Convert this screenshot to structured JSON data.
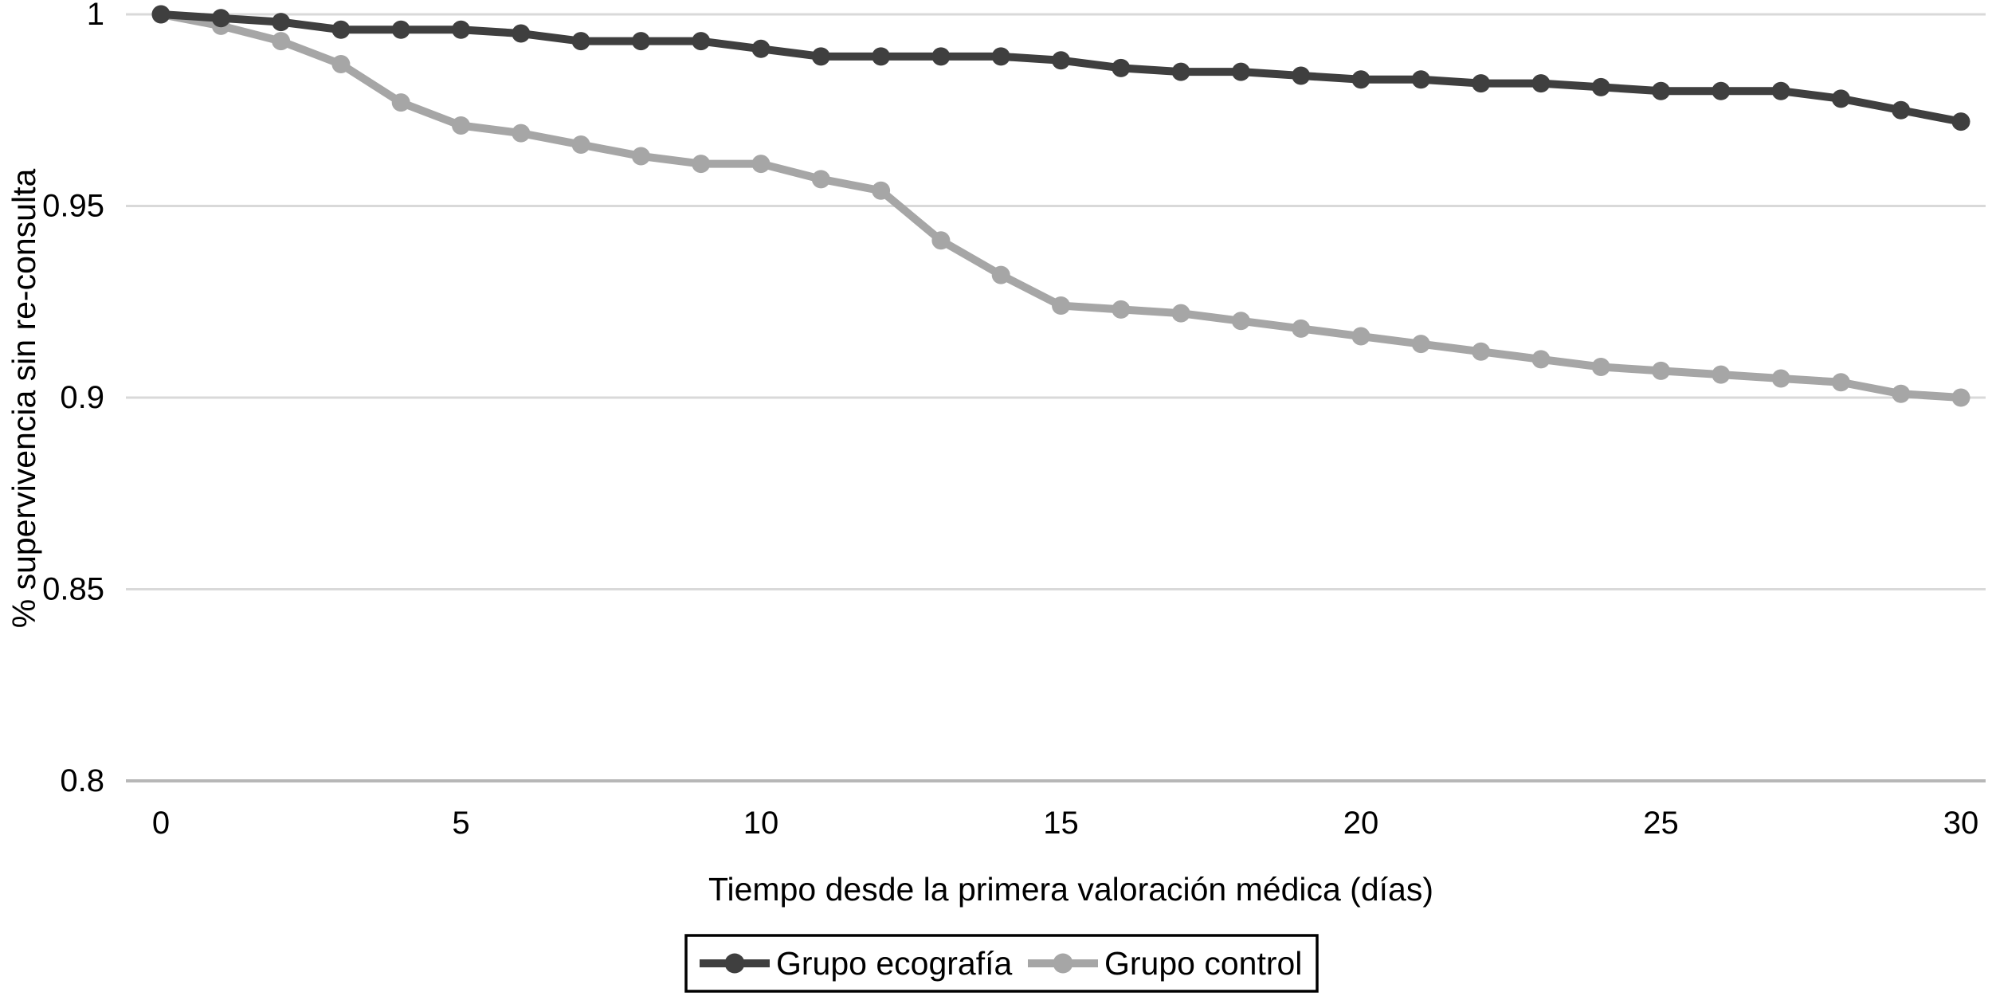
{
  "chart_data": {
    "type": "line",
    "title": "",
    "xlabel": "Tiempo desde la primera valoración médica (días)",
    "ylabel": "% supervivencia sin re-consulta",
    "xlim": [
      0,
      30
    ],
    "ylim": [
      0.8,
      1.0
    ],
    "grid": "horizontal",
    "legend_position": "bottom-center-boxed",
    "x": [
      0,
      1,
      2,
      3,
      4,
      5,
      6,
      7,
      8,
      9,
      10,
      11,
      12,
      13,
      14,
      15,
      16,
      17,
      18,
      19,
      20,
      21,
      22,
      23,
      24,
      25,
      26,
      27,
      28,
      29,
      30
    ],
    "xticks": [
      {
        "label": "0",
        "value": 0
      },
      {
        "label": "5",
        "value": 5
      },
      {
        "label": "10",
        "value": 10
      },
      {
        "label": "15",
        "value": 15
      },
      {
        "label": "20",
        "value": 20
      },
      {
        "label": "25",
        "value": 25
      },
      {
        "label": "30",
        "value": 30
      }
    ],
    "yticks": [
      {
        "label": "1",
        "value": 1.0
      },
      {
        "label": "0.95",
        "value": 0.95
      },
      {
        "label": "0.9",
        "value": 0.9
      },
      {
        "label": "0.85",
        "value": 0.85
      },
      {
        "label": "0.8",
        "value": 0.8
      }
    ],
    "series": [
      {
        "name": "Grupo ecografía",
        "color": "#3f3f3f",
        "marker": "circle",
        "values": [
          1.0,
          0.999,
          0.998,
          0.996,
          0.996,
          0.996,
          0.995,
          0.993,
          0.993,
          0.993,
          0.991,
          0.989,
          0.989,
          0.989,
          0.989,
          0.988,
          0.986,
          0.985,
          0.985,
          0.984,
          0.983,
          0.983,
          0.982,
          0.982,
          0.981,
          0.98,
          0.98,
          0.98,
          0.978,
          0.975,
          0.972
        ]
      },
      {
        "name": "Grupo control",
        "color": "#a6a6a6",
        "marker": "circle",
        "values": [
          1.0,
          0.997,
          0.993,
          0.987,
          0.977,
          0.971,
          0.969,
          0.966,
          0.963,
          0.961,
          0.961,
          0.957,
          0.954,
          0.941,
          0.932,
          0.924,
          0.923,
          0.922,
          0.92,
          0.918,
          0.916,
          0.914,
          0.912,
          0.91,
          0.908,
          0.907,
          0.906,
          0.905,
          0.904,
          0.901,
          0.9
        ]
      }
    ],
    "colors": {
      "gridline": "#d9d9d9",
      "axis_line": "#b7b7b7",
      "text": "#000000",
      "background": "#ffffff",
      "legend_border": "#000000"
    }
  }
}
